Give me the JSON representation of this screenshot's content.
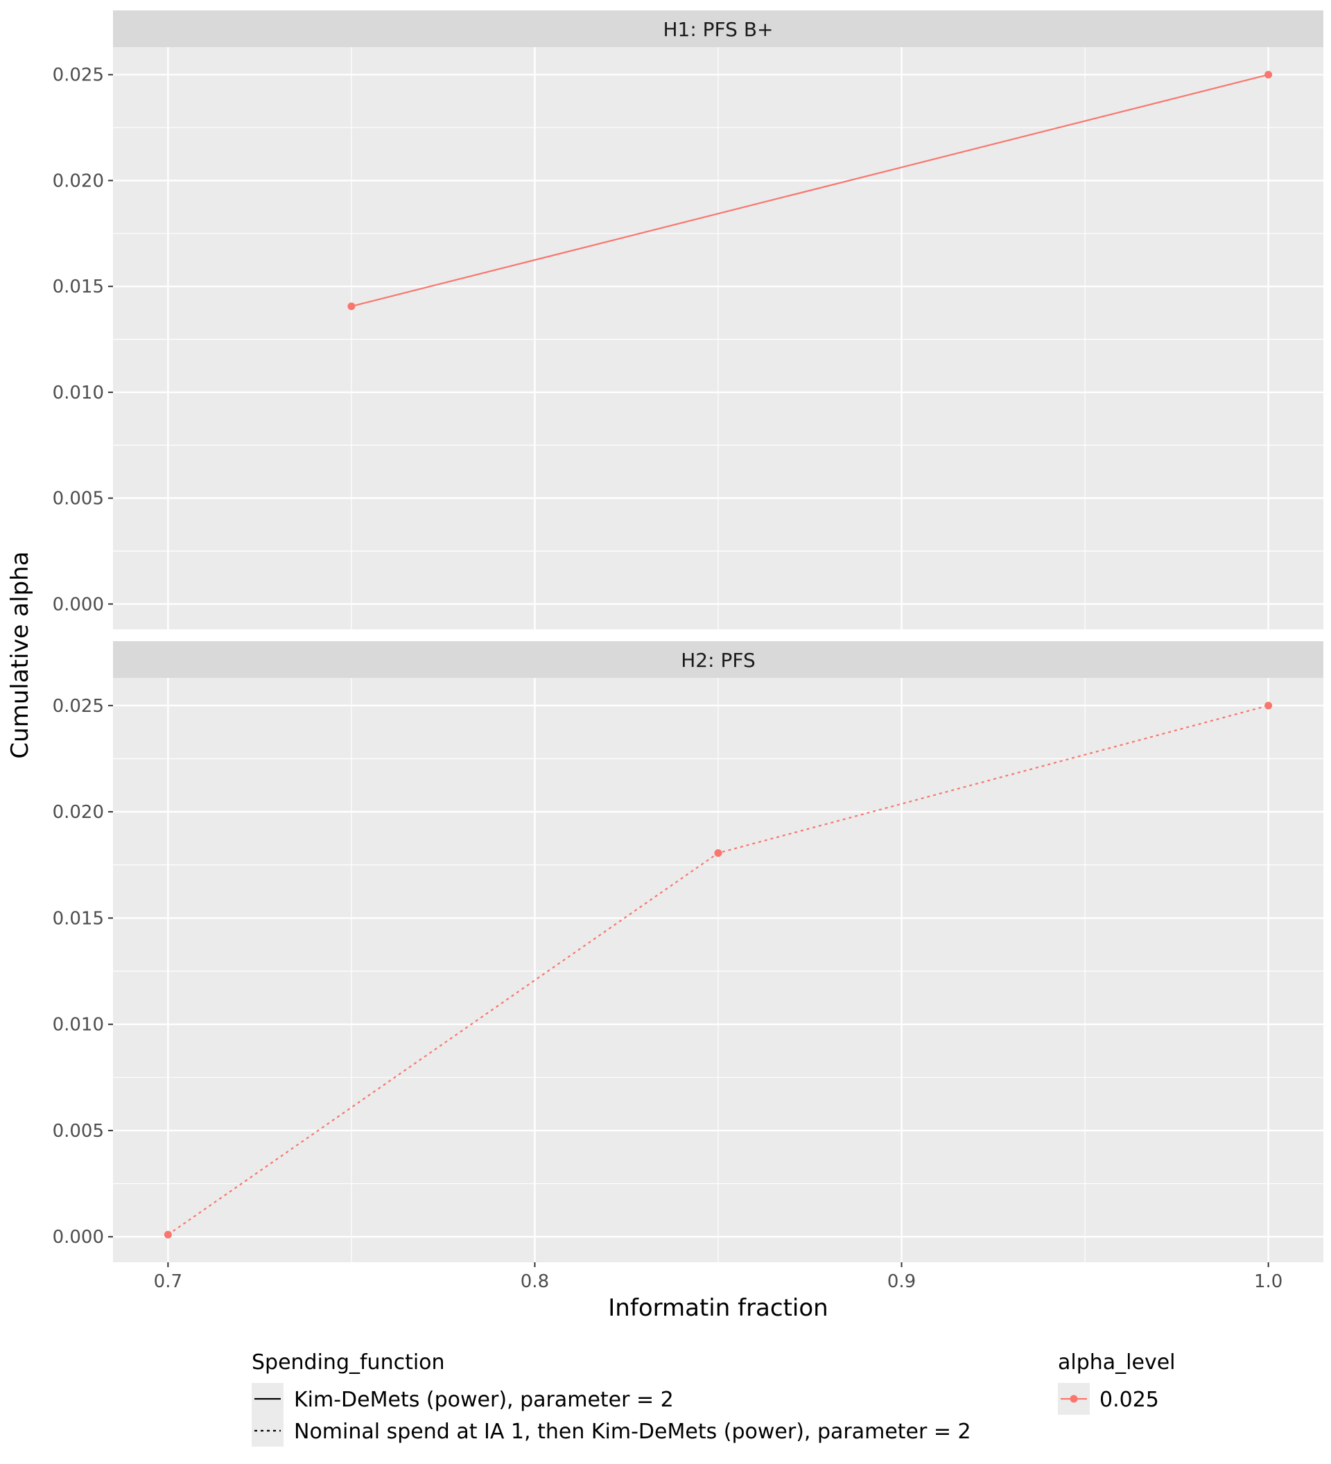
{
  "chart_data": {
    "type": "line",
    "xlabel": "Informatin fraction",
    "ylabel": "Cumulative alpha",
    "xlim": [
      0.685,
      1.015
    ],
    "ylim": [
      -0.0012,
      0.0263
    ],
    "x_ticks": [
      0.7,
      0.8,
      0.9,
      1.0
    ],
    "x_tick_labels": [
      "0.7",
      "0.8",
      "0.9",
      "1.0"
    ],
    "y_ticks": [
      0,
      0.005,
      0.01,
      0.015,
      0.02,
      0.025
    ],
    "y_tick_labels": [
      "0.000",
      "0.005",
      "0.010",
      "0.015",
      "0.020",
      "0.025"
    ],
    "colors": {
      "series": "#F8766D",
      "panel_bg": "#EBEBEB",
      "strip_bg": "#D9D9D9",
      "grid": "#FFFFFF"
    },
    "panels": [
      {
        "strip": "H1: PFS B+",
        "series": [
          {
            "spending_function": "Kim-DeMets (power), parameter = 2",
            "linetype": "solid",
            "alpha_level": "0.025",
            "x": [
              0.75,
              1.0
            ],
            "y": [
              0.01406,
              0.025
            ]
          }
        ]
      },
      {
        "strip": "H2: PFS",
        "series": [
          {
            "spending_function": "Nominal spend at IA 1, then Kim-DeMets (power), parameter = 2",
            "linetype": "dashed",
            "alpha_level": "0.025",
            "x": [
              0.7,
              0.85,
              1.0
            ],
            "y": [
              0.0001,
              0.01806,
              0.025
            ]
          }
        ]
      }
    ],
    "legend": {
      "position": "bottom",
      "linetype": {
        "title": "Spending_function",
        "entries": [
          {
            "label": "Kim-DeMets (power), parameter = 2",
            "linetype": "solid"
          },
          {
            "label": "Nominal spend at IA 1, then Kim-DeMets (power), parameter = 2",
            "linetype": "dashed"
          }
        ]
      },
      "colour": {
        "title": "alpha_level",
        "entries": [
          {
            "label": "0.025"
          }
        ]
      }
    }
  }
}
